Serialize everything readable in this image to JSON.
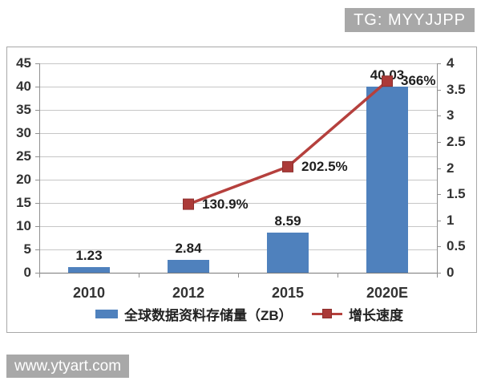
{
  "badge": {
    "text": "TG: MYYJJPP",
    "bg": "#a8a8a8",
    "fg": "#ffffff"
  },
  "watermark": {
    "text": "www.ytyart.com",
    "bg": "#a8a8a8",
    "fg": "#ffffff"
  },
  "chart_data": {
    "type": "bar",
    "combo": "bar+line",
    "title": "",
    "categories": [
      "2010",
      "2012",
      "2015",
      "2020E"
    ],
    "series": [
      {
        "name": "全球数据资料存储量（ZB）",
        "type": "bar",
        "axis": "left",
        "color": "#4f81bd",
        "values": [
          1.23,
          2.84,
          8.59,
          40.03
        ],
        "labels": [
          "1.23",
          "2.84",
          "8.59",
          "40.03"
        ]
      },
      {
        "name": "增长速度",
        "type": "line",
        "axis": "right",
        "marker": "square",
        "color": "#b5403d",
        "marker_fill": "#ab3a38",
        "marker_stroke": "#8c2f2d",
        "values": [
          null,
          1.309,
          2.025,
          3.66
        ],
        "labels": [
          null,
          "130.9%",
          "202.5%",
          "366%"
        ]
      }
    ],
    "left_axis": {
      "min": 0,
      "max": 45,
      "step": 5,
      "tick_labels": [
        "0",
        "5",
        "10",
        "15",
        "20",
        "25",
        "30",
        "35",
        "40",
        "45"
      ]
    },
    "right_axis": {
      "min": 0,
      "max": 4,
      "step": 0.5,
      "tick_labels": [
        "0",
        "0.5",
        "1",
        "1.5",
        "2",
        "2.5",
        "3",
        "3.5",
        "4"
      ]
    },
    "legend_position": "bottom",
    "grid": true
  }
}
